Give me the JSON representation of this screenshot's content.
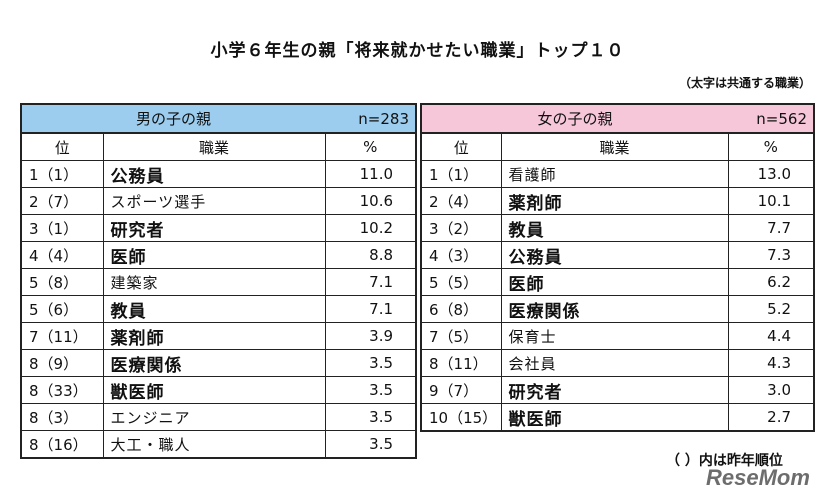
{
  "title": "小学６年生の親「将来就かせたい職業」トップ１０",
  "note": "（太字は共通する職業）",
  "columns": {
    "rank": "位",
    "job": "職業",
    "pct": "%"
  },
  "boys": {
    "heading": "男の子の親",
    "n": "n=283",
    "rows": [
      {
        "rank": "1（1）",
        "job": "公務員",
        "pct": "11.0",
        "common": true
      },
      {
        "rank": "2（7）",
        "job": "スポーツ選手",
        "pct": "10.6",
        "common": false
      },
      {
        "rank": "3（1）",
        "job": "研究者",
        "pct": "10.2",
        "common": true
      },
      {
        "rank": "4（4）",
        "job": "医師",
        "pct": "8.8",
        "common": true
      },
      {
        "rank": "5（8）",
        "job": "建築家",
        "pct": "7.1",
        "common": false
      },
      {
        "rank": "5（6）",
        "job": "教員",
        "pct": "7.1",
        "common": true
      },
      {
        "rank": "7（11）",
        "job": "薬剤師",
        "pct": "3.9",
        "common": true
      },
      {
        "rank": "8（9）",
        "job": "医療関係",
        "pct": "3.5",
        "common": true
      },
      {
        "rank": "8（33）",
        "job": "獣医師",
        "pct": "3.5",
        "common": true
      },
      {
        "rank": "8（3）",
        "job": "エンジニア",
        "pct": "3.5",
        "common": false
      },
      {
        "rank": "8（16）",
        "job": "大工・職人",
        "pct": "3.5",
        "common": false
      }
    ]
  },
  "girls": {
    "heading": "女の子の親",
    "n": "n=562",
    "rows": [
      {
        "rank": "1（1）",
        "job": "看護師",
        "pct": "13.0",
        "common": false
      },
      {
        "rank": "2（4）",
        "job": "薬剤師",
        "pct": "10.1",
        "common": true
      },
      {
        "rank": "3（2）",
        "job": "教員",
        "pct": "7.7",
        "common": true
      },
      {
        "rank": "4（3）",
        "job": "公務員",
        "pct": "7.3",
        "common": true
      },
      {
        "rank": "5（5）",
        "job": "医師",
        "pct": "6.2",
        "common": true
      },
      {
        "rank": "6（8）",
        "job": "医療関係",
        "pct": "5.2",
        "common": true
      },
      {
        "rank": "7（5）",
        "job": "保育士",
        "pct": "4.4",
        "common": false
      },
      {
        "rank": "8（11）",
        "job": "会社員",
        "pct": "4.3",
        "common": false
      },
      {
        "rank": "9（7）",
        "job": "研究者",
        "pct": "3.0",
        "common": true
      },
      {
        "rank": "10（15）",
        "job": "獣医師",
        "pct": "2.7",
        "common": true
      }
    ]
  },
  "footnote": "（ ）内は昨年順位",
  "logo": "ReseMom",
  "colors": {
    "boys_header": "#9ccdee",
    "girls_header": "#f6c7d9",
    "border": "#222222"
  }
}
